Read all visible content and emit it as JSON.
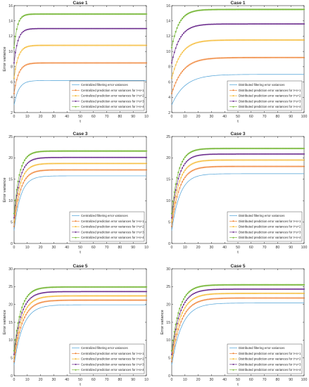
{
  "series_colors": [
    "#4a9fd6",
    "#ee7d2b",
    "#f5b72a",
    "#6a2a8c",
    "#78b83a"
  ],
  "chart_data": [
    {
      "type": "line",
      "title": "Case 1",
      "xlabel": "t",
      "ylabel": "Error variance",
      "xlim": [
        0,
        100
      ],
      "ylim": [
        2,
        16
      ],
      "xticks": [
        "0",
        "10",
        "20",
        "30",
        "40",
        "50",
        "60",
        "70",
        "80",
        "90",
        "10"
      ],
      "yticks": [
        2,
        4,
        6,
        8,
        10,
        12,
        14,
        16
      ],
      "grid": false,
      "legend_position": "bottom-right",
      "series": [
        {
          "name": "Centralized filtering error variances",
          "marker": "none",
          "start": 3.0,
          "final": 6.2,
          "rate": 0.28
        },
        {
          "name": "Centralized prediction error variances for t+s+1",
          "marker": "circle",
          "start": 4.5,
          "final": 8.5,
          "rate": 0.3
        },
        {
          "name": "Centralized prediction error variances for t+s+2",
          "marker": "circle",
          "start": 6.5,
          "final": 10.8,
          "rate": 0.32
        },
        {
          "name": "Centralized prediction error variances for t+s+3",
          "marker": "star",
          "start": 8.5,
          "final": 13.0,
          "rate": 0.35
        },
        {
          "name": "Centralized prediction error variances for t+s+4",
          "marker": "diamond",
          "start": 10.5,
          "final": 14.9,
          "rate": 0.4
        }
      ]
    },
    {
      "type": "line",
      "title": "Case 1",
      "xlabel": "t",
      "ylabel": "",
      "xlim": [
        0,
        100
      ],
      "ylim": [
        2,
        16
      ],
      "xticks": [
        "0",
        "10",
        "20",
        "30",
        "40",
        "50",
        "60",
        "70",
        "80",
        "90",
        "100"
      ],
      "yticks": [
        2,
        4,
        6,
        8,
        10,
        12,
        14,
        16
      ],
      "grid": false,
      "legend_position": "bottom-right",
      "series": [
        {
          "name": "Distributed filtering error variances",
          "marker": "none",
          "start": 3.0,
          "final": 7.0,
          "rate": 0.1
        },
        {
          "name": "Distributed prediction error variances for t+s+1",
          "marker": "circle",
          "start": 4.5,
          "final": 9.2,
          "rate": 0.12
        },
        {
          "name": "Distributed prediction error variances for t+s+2",
          "marker": "circle",
          "start": 6.5,
          "final": 11.5,
          "rate": 0.14
        },
        {
          "name": "Distributed prediction error variances for t+s+3",
          "marker": "star",
          "start": 8.5,
          "final": 13.6,
          "rate": 0.16
        },
        {
          "name": "Distributed prediction error variances for t+s+4",
          "marker": "diamond",
          "start": 10.5,
          "final": 15.5,
          "rate": 0.18
        }
      ]
    },
    {
      "type": "line",
      "title": "Case 3",
      "xlabel": "t",
      "ylabel": "Error variance",
      "xlim": [
        0,
        100
      ],
      "ylim": [
        0,
        25
      ],
      "xticks": [
        "0",
        "10",
        "20",
        "30",
        "40",
        "50",
        "60",
        "70",
        "80",
        "90",
        "10"
      ],
      "yticks": [
        0,
        5,
        10,
        15,
        20,
        25
      ],
      "grid": false,
      "legend_position": "bottom-right",
      "series": [
        {
          "name": "Centralized filtering error variances",
          "marker": "none",
          "start": 3.0,
          "final": 15.8,
          "rate": 0.2
        },
        {
          "name": "Centralized prediction error variances for t+s+1",
          "marker": "circle",
          "start": 4.0,
          "final": 17.2,
          "rate": 0.21
        },
        {
          "name": "Centralized prediction error variances for t+s+2",
          "marker": "circle",
          "start": 5.0,
          "final": 18.7,
          "rate": 0.22
        },
        {
          "name": "Centralized prediction error variances for t+s+3",
          "marker": "star",
          "start": 6.0,
          "final": 20.1,
          "rate": 0.23
        },
        {
          "name": "Centralized prediction error variances for t+s+4",
          "marker": "diamond",
          "start": 7.0,
          "final": 21.6,
          "rate": 0.24
        }
      ]
    },
    {
      "type": "line",
      "title": "Case 3",
      "xlabel": "t",
      "ylabel": "",
      "xlim": [
        0,
        100
      ],
      "ylim": [
        0,
        25
      ],
      "xticks": [
        "0",
        "10",
        "20",
        "30",
        "40",
        "50",
        "60",
        "70",
        "80",
        "90",
        "100"
      ],
      "yticks": [
        0,
        5,
        10,
        15,
        20,
        25
      ],
      "grid": false,
      "legend_position": "bottom-right",
      "series": [
        {
          "name": "Distributed filtering error variances",
          "marker": "none",
          "start": 3.0,
          "final": 16.3,
          "rate": 0.16
        },
        {
          "name": "Distributed prediction error variances for t+s+1",
          "marker": "circle",
          "start": 4.0,
          "final": 18.0,
          "rate": 0.17
        },
        {
          "name": "Distributed prediction error variances for t+s+2",
          "marker": "circle",
          "start": 5.0,
          "final": 19.5,
          "rate": 0.18
        },
        {
          "name": "Distributed prediction error variances for t+s+3",
          "marker": "star",
          "start": 6.0,
          "final": 20.9,
          "rate": 0.19
        },
        {
          "name": "Distributed prediction error variances for t+s+4",
          "marker": "diamond",
          "start": 7.0,
          "final": 22.2,
          "rate": 0.2
        }
      ]
    },
    {
      "type": "line",
      "title": "Case 5",
      "xlabel": "t",
      "ylabel": "Error variance",
      "xlim": [
        0,
        100
      ],
      "ylim": [
        0,
        30
      ],
      "xticks": [
        "0",
        "10",
        "20",
        "30",
        "40",
        "50",
        "60",
        "70",
        "80",
        "90",
        "10"
      ],
      "yticks": [
        0,
        5,
        10,
        15,
        20,
        25,
        30
      ],
      "grid": false,
      "legend_position": "bottom-right",
      "series": [
        {
          "name": "Centralized filtering error variances",
          "marker": "none",
          "start": 3.0,
          "final": 19.9,
          "rate": 0.15
        },
        {
          "name": "Centralized prediction error variances for t+s+1",
          "marker": "circle",
          "start": 4.0,
          "final": 21.2,
          "rate": 0.16
        },
        {
          "name": "Centralized prediction error variances for t+s+2",
          "marker": "circle",
          "start": 5.0,
          "final": 22.4,
          "rate": 0.17
        },
        {
          "name": "Centralized prediction error variances for t+s+3",
          "marker": "star",
          "start": 6.0,
          "final": 23.6,
          "rate": 0.18
        },
        {
          "name": "Centralized prediction error variances for t+s+4",
          "marker": "diamond",
          "start": 7.0,
          "final": 24.9,
          "rate": 0.19
        }
      ]
    },
    {
      "type": "line",
      "title": "Case 5",
      "xlabel": "t",
      "ylabel": "Error variance",
      "xlim": [
        0,
        100
      ],
      "ylim": [
        0,
        30
      ],
      "xticks": [
        "0",
        "10",
        "20",
        "30",
        "40",
        "50",
        "60",
        "70",
        "80",
        "90",
        "100"
      ],
      "yticks": [
        0,
        5,
        10,
        15,
        20,
        25,
        30
      ],
      "grid": false,
      "legend_position": "bottom-right",
      "series": [
        {
          "name": "Distributed filtering error variances",
          "marker": "none",
          "start": 3.0,
          "final": 20.4,
          "rate": 0.13
        },
        {
          "name": "Distributed prediction error variances for t+s+1",
          "marker": "circle",
          "start": 4.0,
          "final": 21.8,
          "rate": 0.14
        },
        {
          "name": "Distributed prediction error variances for t+s+2",
          "marker": "circle",
          "start": 5.0,
          "final": 23.1,
          "rate": 0.15
        },
        {
          "name": "Distributed prediction error variances for t+s+3",
          "marker": "star",
          "start": 6.0,
          "final": 24.3,
          "rate": 0.16
        },
        {
          "name": "Distributed prediction error variances for t+s+4",
          "marker": "diamond",
          "start": 7.0,
          "final": 25.5,
          "rate": 0.17
        }
      ]
    }
  ]
}
